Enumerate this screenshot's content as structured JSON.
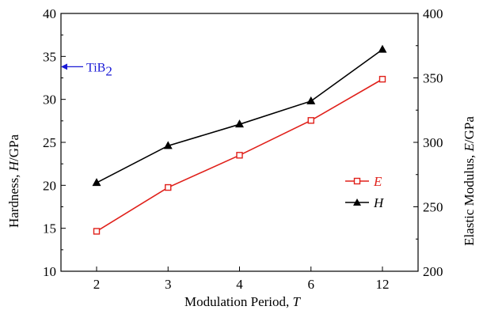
{
  "chart_data": {
    "type": "line",
    "categories": [
      "2",
      "3",
      "4",
      "6",
      "12"
    ],
    "x_label": {
      "prefix": "Modulation Period, ",
      "var": "T"
    },
    "y_left": {
      "label_prefix": "Hardness, ",
      "label_var": "H",
      "label_suffix": "/GPa",
      "range": [
        10,
        40
      ],
      "ticks": [
        10,
        15,
        20,
        25,
        30,
        35,
        40
      ]
    },
    "y_right": {
      "label_prefix": "Elastic Modulus, ",
      "label_var": "E",
      "label_suffix": "/GPa",
      "range": [
        200,
        400
      ],
      "ticks": [
        200,
        250,
        300,
        350,
        400
      ]
    },
    "series": [
      {
        "name": "E",
        "axis": "right",
        "color": "#e0201a",
        "marker": "open-square",
        "values": [
          231,
          265,
          290,
          317,
          349
        ]
      },
      {
        "name": "H",
        "axis": "left",
        "color": "#000000",
        "marker": "filled-triangle",
        "values": [
          20.3,
          24.6,
          27.1,
          29.8,
          35.8
        ]
      }
    ],
    "legend_position": "right-middle",
    "grid": false,
    "annotation": {
      "text": "TiB",
      "subscript": "2",
      "value": 33.8,
      "axis": "left",
      "color": "#1a1ad6"
    }
  }
}
